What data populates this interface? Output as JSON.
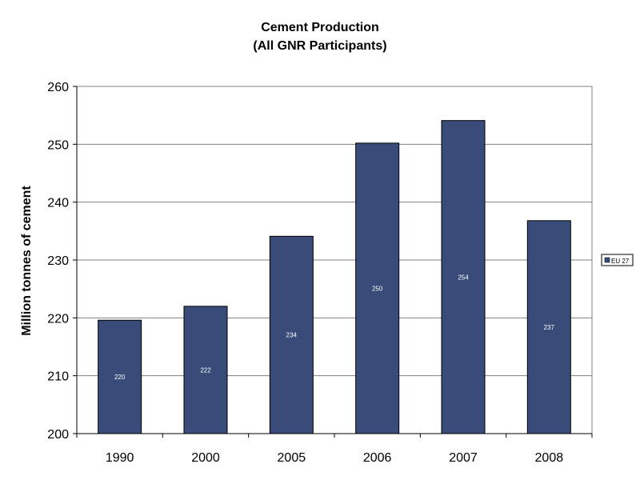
{
  "chart_data": {
    "type": "bar",
    "title": "Cement Production",
    "subtitle": "(All GNR Participants)",
    "xlabel": "",
    "ylabel": "Million tonnes of cement",
    "categories": [
      "1990",
      "2000",
      "2005",
      "2006",
      "2007",
      "2008"
    ],
    "series": [
      {
        "name": "EU 27",
        "values": [
          219.6,
          222.0,
          234.1,
          250.2,
          254.1,
          236.8
        ],
        "data_labels": [
          "220",
          "222",
          "234",
          "250",
          "254",
          "237"
        ],
        "color": "#394B78"
      }
    ],
    "ylim": [
      200,
      260
    ],
    "yticks": [
      "200",
      "210",
      "220",
      "230",
      "240",
      "250",
      "260"
    ],
    "grid": true,
    "legend_position": "right",
    "colors": {
      "bar": "#394B78",
      "grid": "#808080",
      "axis": "#000000",
      "background": "#FFFFFF"
    }
  }
}
